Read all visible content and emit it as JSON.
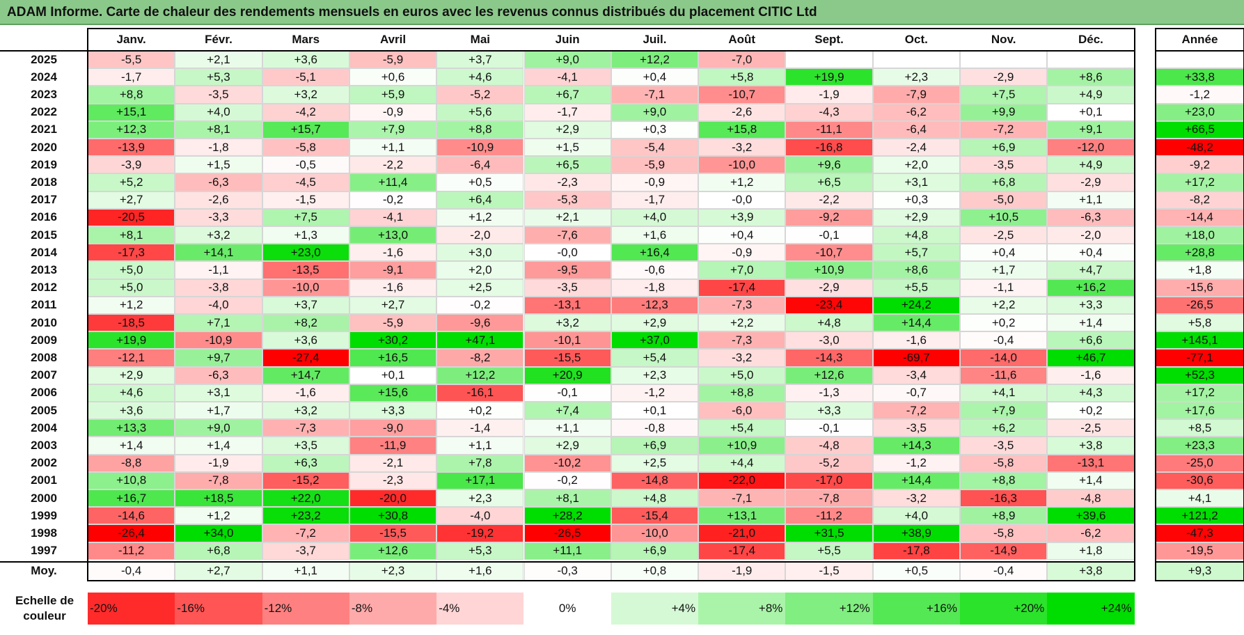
{
  "title": "ADAM Informe. Carte de chaleur des rendements mensuels en euros avec les revenus connus distribués du placement CITIC Ltd",
  "chart_data": {
    "type": "heatmap",
    "title": "ADAM Informe. Carte de chaleur des rendements mensuels en euros avec les revenus connus distribués du placement CITIC Ltd",
    "columns": [
      "Janv.",
      "Févr.",
      "Mars",
      "Avril",
      "Mai",
      "Juin",
      "Juil.",
      "Août",
      "Sept.",
      "Oct.",
      "Nov.",
      "Déc."
    ],
    "year_column": "Année",
    "rows": [
      {
        "year": "2025",
        "values": [
          "-5,5",
          "+2,1",
          "+3,6",
          "-5,9",
          "+3,7",
          "+9,0",
          "+12,2",
          "-7,0",
          "",
          "",
          "",
          ""
        ],
        "annual": ""
      },
      {
        "year": "2024",
        "values": [
          "-1,7",
          "+5,3",
          "-5,1",
          "+0,6",
          "+4,6",
          "-4,1",
          "+0,4",
          "+5,8",
          "+19,9",
          "+2,3",
          "-2,9",
          "+8,6"
        ],
        "annual": "+33,8"
      },
      {
        "year": "2023",
        "values": [
          "+8,8",
          "-3,5",
          "+3,2",
          "+5,9",
          "-5,2",
          "+6,7",
          "-7,1",
          "-10,7",
          "-1,9",
          "-7,9",
          "+7,5",
          "+4,9"
        ],
        "annual": "-1,2"
      },
      {
        "year": "2022",
        "values": [
          "+15,1",
          "+4,0",
          "-4,2",
          "-0,9",
          "+5,6",
          "-1,7",
          "+9,0",
          "-2,6",
          "-4,3",
          "-6,2",
          "+9,9",
          "+0,1"
        ],
        "annual": "+23,0"
      },
      {
        "year": "2021",
        "values": [
          "+12,3",
          "+8,1",
          "+15,7",
          "+7,9",
          "+8,8",
          "+2,9",
          "+0,3",
          "+15,8",
          "-11,1",
          "-6,4",
          "-7,2",
          "+9,1"
        ],
        "annual": "+66,5"
      },
      {
        "year": "2020",
        "values": [
          "-13,9",
          "-1,8",
          "-5,8",
          "+1,1",
          "-10,9",
          "+1,5",
          "-5,4",
          "-3,2",
          "-16,8",
          "-2,4",
          "+6,9",
          "-12,0"
        ],
        "annual": "-48,2"
      },
      {
        "year": "2019",
        "values": [
          "-3,9",
          "+1,5",
          "-0,5",
          "-2,2",
          "-6,4",
          "+6,5",
          "-5,9",
          "-10,0",
          "+9,6",
          "+2,0",
          "-3,5",
          "+4,9"
        ],
        "annual": "-9,2"
      },
      {
        "year": "2018",
        "values": [
          "+5,2",
          "-6,3",
          "-4,5",
          "+11,4",
          "+0,5",
          "-2,3",
          "-0,9",
          "+1,2",
          "+6,5",
          "+3,1",
          "+6,8",
          "-2,9"
        ],
        "annual": "+17,2"
      },
      {
        "year": "2017",
        "values": [
          "+2,7",
          "-2,6",
          "-1,5",
          "-0,2",
          "+6,4",
          "-5,3",
          "-1,7",
          "-0,0",
          "-2,2",
          "+0,3",
          "-5,0",
          "+1,1"
        ],
        "annual": "-8,2"
      },
      {
        "year": "2016",
        "values": [
          "-20,5",
          "-3,3",
          "+7,5",
          "-4,1",
          "+1,2",
          "+2,1",
          "+4,0",
          "+3,9",
          "-9,2",
          "+2,9",
          "+10,5",
          "-6,3"
        ],
        "annual": "-14,4"
      },
      {
        "year": "2015",
        "values": [
          "+8,1",
          "+3,2",
          "+1,3",
          "+13,0",
          "-2,0",
          "-7,6",
          "+1,6",
          "+0,4",
          "-0,1",
          "+4,8",
          "-2,5",
          "-2,0"
        ],
        "annual": "+18,0"
      },
      {
        "year": "2014",
        "values": [
          "-17,3",
          "+14,1",
          "+23,0",
          "-1,6",
          "+3,0",
          "-0,0",
          "+16,4",
          "-0,9",
          "-10,7",
          "+5,7",
          "+0,4",
          "+0,4"
        ],
        "annual": "+28,8"
      },
      {
        "year": "2013",
        "values": [
          "+5,0",
          "-1,1",
          "-13,5",
          "-9,1",
          "+2,0",
          "-9,5",
          "-0,6",
          "+7,0",
          "+10,9",
          "+8,6",
          "+1,7",
          "+4,7"
        ],
        "annual": "+1,8"
      },
      {
        "year": "2012",
        "values": [
          "+5,0",
          "-3,8",
          "-10,0",
          "-1,6",
          "+2,5",
          "-3,5",
          "-1,8",
          "-17,4",
          "-2,9",
          "+5,5",
          "-1,1",
          "+16,2"
        ],
        "annual": "-15,6"
      },
      {
        "year": "2011",
        "values": [
          "+1,2",
          "-4,0",
          "+3,7",
          "+2,7",
          "-0,2",
          "-13,1",
          "-12,3",
          "-7,3",
          "-23,4",
          "+24,2",
          "+2,2",
          "+3,3"
        ],
        "annual": "-26,5"
      },
      {
        "year": "2010",
        "values": [
          "-18,5",
          "+7,1",
          "+8,2",
          "-5,9",
          "-9,6",
          "+3,2",
          "+2,9",
          "+2,2",
          "+4,8",
          "+14,4",
          "+0,2",
          "+1,4"
        ],
        "annual": "+5,8"
      },
      {
        "year": "2009",
        "values": [
          "+19,9",
          "-10,9",
          "+3,6",
          "+30,2",
          "+47,1",
          "-10,1",
          "+37,0",
          "-7,3",
          "-3,0",
          "-1,6",
          "-0,4",
          "+6,6"
        ],
        "annual": "+145,1"
      },
      {
        "year": "2008",
        "values": [
          "-12,1",
          "+9,7",
          "-27,4",
          "+16,5",
          "-8,2",
          "-15,5",
          "+5,4",
          "-3,2",
          "-14,3",
          "-69,7",
          "-14,0",
          "+46,7"
        ],
        "annual": "-77,1"
      },
      {
        "year": "2007",
        "values": [
          "+2,9",
          "-6,3",
          "+14,7",
          "+0,1",
          "+12,2",
          "+20,9",
          "+2,3",
          "+5,0",
          "+12,6",
          "-3,4",
          "-11,6",
          "-1,6"
        ],
        "annual": "+52,3"
      },
      {
        "year": "2006",
        "values": [
          "+4,6",
          "+3,1",
          "-1,6",
          "+15,6",
          "-16,1",
          "-0,1",
          "-1,2",
          "+8,8",
          "-1,3",
          "-0,7",
          "+4,1",
          "+4,3"
        ],
        "annual": "+17,2"
      },
      {
        "year": "2005",
        "values": [
          "+3,6",
          "+1,7",
          "+3,2",
          "+3,3",
          "+0,2",
          "+7,4",
          "+0,1",
          "-6,0",
          "+3,3",
          "-7,2",
          "+7,9",
          "+0,2"
        ],
        "annual": "+17,6"
      },
      {
        "year": "2004",
        "values": [
          "+13,3",
          "+9,0",
          "-7,3",
          "-9,0",
          "-1,4",
          "+1,1",
          "-0,8",
          "+5,4",
          "-0,1",
          "-3,5",
          "+6,2",
          "-2,5"
        ],
        "annual": "+8,5"
      },
      {
        "year": "2003",
        "values": [
          "+1,4",
          "+1,4",
          "+3,5",
          "-11,9",
          "+1,1",
          "+2,9",
          "+6,9",
          "+10,9",
          "-4,8",
          "+14,3",
          "-3,5",
          "+3,8"
        ],
        "annual": "+23,3"
      },
      {
        "year": "2002",
        "values": [
          "-8,8",
          "-1,9",
          "+6,3",
          "-2,1",
          "+7,8",
          "-10,2",
          "+2,5",
          "+4,4",
          "-5,2",
          "-1,2",
          "-5,8",
          "-13,1"
        ],
        "annual": "-25,0"
      },
      {
        "year": "2001",
        "values": [
          "+10,8",
          "-7,8",
          "-15,2",
          "-2,3",
          "+17,1",
          "-0,2",
          "-14,8",
          "-22,0",
          "-17,0",
          "+14,4",
          "+8,8",
          "+1,4"
        ],
        "annual": "-30,6"
      },
      {
        "year": "2000",
        "values": [
          "+16,7",
          "+18,5",
          "+22,0",
          "-20,0",
          "+2,3",
          "+8,1",
          "+4,8",
          "-7,1",
          "-7,8",
          "-3,2",
          "-16,3",
          "-4,8"
        ],
        "annual": "+4,1"
      },
      {
        "year": "1999",
        "values": [
          "-14,6",
          "+1,2",
          "+23,2",
          "+30,8",
          "-4,0",
          "+28,2",
          "-15,4",
          "+13,1",
          "-11,2",
          "+4,0",
          "+8,9",
          "+39,6"
        ],
        "annual": "+121,2"
      },
      {
        "year": "1998",
        "values": [
          "-26,4",
          "+34,0",
          "-7,2",
          "-15,5",
          "-19,2",
          "-26,5",
          "-10,0",
          "-21,0",
          "+31,5",
          "+38,9",
          "-5,8",
          "-6,2"
        ],
        "annual": "-47,3"
      },
      {
        "year": "1997",
        "values": [
          "-11,2",
          "+6,8",
          "-3,7",
          "+12,6",
          "+5,3",
          "+11,1",
          "+6,9",
          "-17,4",
          "+5,5",
          "-17,8",
          "-14,9",
          "+1,8"
        ],
        "annual": "-19,5"
      }
    ],
    "average": {
      "label": "Moy.",
      "values": [
        "-0,4",
        "+2,7",
        "+1,1",
        "+2,3",
        "+1,6",
        "-0,3",
        "+0,8",
        "-1,9",
        "-1,5",
        "+0,5",
        "-0,4",
        "+3,8"
      ],
      "annual": "+9,3"
    },
    "scale": {
      "label_line1": "Echelle de",
      "label_line2": "couleur",
      "steps": [
        {
          "label": "-20%",
          "value": -20
        },
        {
          "label": "-16%",
          "value": -16
        },
        {
          "label": "-12%",
          "value": -12
        },
        {
          "label": "-8%",
          "value": -8
        },
        {
          "label": "-4%",
          "value": -4
        },
        {
          "label": "0%",
          "value": 0
        },
        {
          "label": "+4%",
          "value": 4
        },
        {
          "label": "+8%",
          "value": 8
        },
        {
          "label": "+12%",
          "value": 12
        },
        {
          "label": "+16%",
          "value": 16
        },
        {
          "label": "+20%",
          "value": 20
        },
        {
          "label": "+24%",
          "value": 24
        }
      ]
    },
    "colors": {
      "negative": "#ff0000",
      "neutral": "#ffffff",
      "positive": "#00dd00",
      "title_bg": "#8bc98b"
    }
  }
}
